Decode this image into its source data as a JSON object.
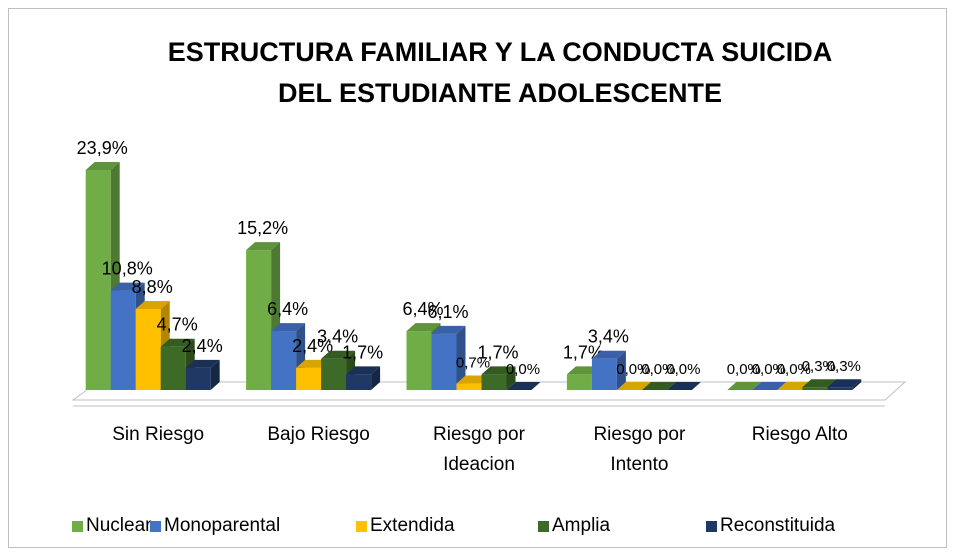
{
  "chart_data": {
    "type": "bar3d",
    "title": "ESTRUCTURA FAMILIAR Y LA CONDUCTA SUICIDA DEL ESTUDIANTE ADOLESCENTE",
    "categories": [
      "Sin Riesgo",
      "Bajo Riesgo",
      "Riesgo por Ideacion",
      "Riesgo por Intento",
      "Riesgo Alto"
    ],
    "series": [
      {
        "name": "Nuclear",
        "color": "#70ad47",
        "values": [
          23.9,
          15.2,
          6.4,
          1.7,
          0.0
        ],
        "value_labels": [
          "23,9%",
          "15,2%",
          "6,4%",
          "1,7%",
          "0,0%"
        ]
      },
      {
        "name": "Monoparental",
        "color": "#4472c4",
        "values": [
          10.8,
          6.4,
          6.1,
          3.4,
          0.0
        ],
        "value_labels": [
          "10,8%",
          "6,4%",
          "6,1%",
          "3,4%",
          "0,0%"
        ]
      },
      {
        "name": "Extendida",
        "color": "#ffc000",
        "values": [
          8.8,
          2.4,
          0.7,
          0.0,
          0.0
        ],
        "value_labels": [
          "8,8%",
          "2,4%",
          "0,7%",
          "0,0%",
          "0,0%"
        ]
      },
      {
        "name": "Amplia",
        "color": "#3d6b27",
        "values": [
          4.7,
          3.4,
          1.7,
          0.0,
          0.3
        ],
        "value_labels": [
          "4,7%",
          "3,4%",
          "1,7%",
          "0,0%",
          "0,3%"
        ]
      },
      {
        "name": "Reconstituida",
        "color": "#1f3864",
        "values": [
          2.4,
          1.7,
          0.0,
          0.0,
          0.3
        ],
        "value_labels": [
          "2,4%",
          "1,7%",
          "0,0%",
          "0,0%",
          "0,3%"
        ]
      }
    ],
    "legend": "bottom"
  }
}
